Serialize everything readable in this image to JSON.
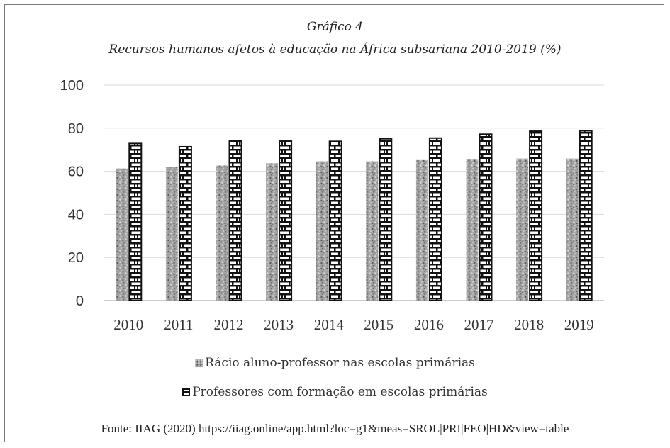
{
  "chart_data": {
    "type": "bar",
    "title": "Gráfico 4",
    "subtitle": "Recursos humanos afetos à educação na África subsariana 2010-2019 (%)",
    "categories": [
      "2010",
      "2011",
      "2012",
      "2013",
      "2014",
      "2015",
      "2016",
      "2017",
      "2018",
      "2019"
    ],
    "series": [
      {
        "name": "Rácio aluno-professor nas escolas primárias",
        "values": [
          61.3,
          62.0,
          62.7,
          63.7,
          64.6,
          64.6,
          65.2,
          65.5,
          65.9,
          65.9
        ],
        "pattern": "stone",
        "color": "#8e8e8e"
      },
      {
        "name": "Professores com formação em escolas primárias",
        "values": [
          72.9,
          71.4,
          74.3,
          74.0,
          73.9,
          75.1,
          75.4,
          77.2,
          78.6,
          78.8
        ],
        "pattern": "brick",
        "color": "#111111"
      }
    ],
    "yticks": [
      "0",
      "20",
      "40",
      "60",
      "80",
      "100"
    ],
    "ylim": [
      0,
      100
    ],
    "grid": true,
    "legend": "bottom",
    "xlabel": "",
    "ylabel": ""
  },
  "source": "Fonte: IIAG (2020) https://iiag.online/app.html?loc=g1&meas=SROL|PRI|FEO|HD&view=table"
}
